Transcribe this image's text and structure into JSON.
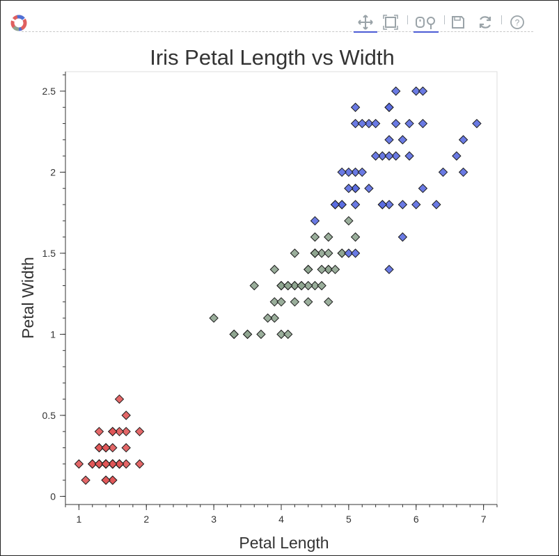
{
  "toolbar": {
    "tools": [
      {
        "name": "pan-tool",
        "icon": "pan-icon",
        "active": true
      },
      {
        "name": "box-zoom-tool",
        "icon": "box-zoom-icon",
        "active": false
      },
      {
        "name": "wheel-zoom-tool",
        "icon": "wheel-zoom-icon",
        "active": true
      },
      {
        "name": "save-tool",
        "icon": "save-icon",
        "active": false
      },
      {
        "name": "reset-tool",
        "icon": "reset-icon",
        "active": false
      },
      {
        "name": "help-tool",
        "icon": "help-icon",
        "active": false
      }
    ]
  },
  "chart_data": {
    "type": "scatter",
    "title": "Iris Petal Length vs Width",
    "xlabel": "Petal Length",
    "ylabel": "Petal Width",
    "xlim": [
      0.8,
      7.2
    ],
    "ylim": [
      -0.05,
      2.62
    ],
    "x_ticks": [
      1,
      2,
      3,
      4,
      5,
      6,
      7
    ],
    "y_ticks": [
      0,
      0.5,
      1,
      1.5,
      2,
      2.5
    ],
    "y_tick_labels": [
      "0",
      "0.5",
      "1",
      "1.5",
      "2",
      "2.5"
    ],
    "grid": false,
    "legend": "none",
    "marker": "diamond",
    "series": [
      {
        "color": "#e05658",
        "points": [
          [
            1.4,
            0.2
          ],
          [
            1.4,
            0.2
          ],
          [
            1.3,
            0.2
          ],
          [
            1.5,
            0.2
          ],
          [
            1.4,
            0.2
          ],
          [
            1.7,
            0.4
          ],
          [
            1.4,
            0.3
          ],
          [
            1.5,
            0.2
          ],
          [
            1.4,
            0.2
          ],
          [
            1.5,
            0.1
          ],
          [
            1.5,
            0.2
          ],
          [
            1.6,
            0.2
          ],
          [
            1.4,
            0.1
          ],
          [
            1.1,
            0.1
          ],
          [
            1.2,
            0.2
          ],
          [
            1.5,
            0.4
          ],
          [
            1.3,
            0.4
          ],
          [
            1.4,
            0.3
          ],
          [
            1.7,
            0.3
          ],
          [
            1.5,
            0.3
          ],
          [
            1.7,
            0.2
          ],
          [
            1.5,
            0.4
          ],
          [
            1.0,
            0.2
          ],
          [
            1.7,
            0.5
          ],
          [
            1.9,
            0.2
          ],
          [
            1.6,
            0.2
          ],
          [
            1.6,
            0.4
          ],
          [
            1.5,
            0.2
          ],
          [
            1.4,
            0.2
          ],
          [
            1.6,
            0.2
          ],
          [
            1.6,
            0.2
          ],
          [
            1.5,
            0.4
          ],
          [
            1.5,
            0.1
          ],
          [
            1.4,
            0.2
          ],
          [
            1.5,
            0.2
          ],
          [
            1.2,
            0.2
          ],
          [
            1.3,
            0.2
          ],
          [
            1.4,
            0.1
          ],
          [
            1.3,
            0.2
          ],
          [
            1.5,
            0.2
          ],
          [
            1.3,
            0.3
          ],
          [
            1.3,
            0.3
          ],
          [
            1.3,
            0.2
          ],
          [
            1.6,
            0.6
          ],
          [
            1.9,
            0.4
          ],
          [
            1.4,
            0.3
          ],
          [
            1.6,
            0.2
          ],
          [
            1.4,
            0.2
          ],
          [
            1.5,
            0.2
          ],
          [
            1.4,
            0.2
          ]
        ]
      },
      {
        "color": "#8fa590",
        "points": [
          [
            4.7,
            1.4
          ],
          [
            4.5,
            1.5
          ],
          [
            4.9,
            1.5
          ],
          [
            4.0,
            1.3
          ],
          [
            4.6,
            1.5
          ],
          [
            4.5,
            1.3
          ],
          [
            4.7,
            1.6
          ],
          [
            3.3,
            1.0
          ],
          [
            4.6,
            1.3
          ],
          [
            3.9,
            1.4
          ],
          [
            3.5,
            1.0
          ],
          [
            4.2,
            1.5
          ],
          [
            4.0,
            1.0
          ],
          [
            4.7,
            1.4
          ],
          [
            3.6,
            1.3
          ],
          [
            4.4,
            1.4
          ],
          [
            4.5,
            1.5
          ],
          [
            4.1,
            1.0
          ],
          [
            4.5,
            1.5
          ],
          [
            3.9,
            1.1
          ],
          [
            4.8,
            1.8
          ],
          [
            4.0,
            1.3
          ],
          [
            4.9,
            1.5
          ],
          [
            4.7,
            1.2
          ],
          [
            4.3,
            1.3
          ],
          [
            4.4,
            1.4
          ],
          [
            4.8,
            1.4
          ],
          [
            5.0,
            1.7
          ],
          [
            4.5,
            1.5
          ],
          [
            3.5,
            1.0
          ],
          [
            3.8,
            1.1
          ],
          [
            3.7,
            1.0
          ],
          [
            3.9,
            1.2
          ],
          [
            5.1,
            1.6
          ],
          [
            4.5,
            1.5
          ],
          [
            4.5,
            1.6
          ],
          [
            4.7,
            1.5
          ],
          [
            4.4,
            1.3
          ],
          [
            4.1,
            1.3
          ],
          [
            4.0,
            1.3
          ],
          [
            4.4,
            1.2
          ],
          [
            4.6,
            1.4
          ],
          [
            4.0,
            1.2
          ],
          [
            3.3,
            1.0
          ],
          [
            4.2,
            1.3
          ],
          [
            4.2,
            1.2
          ],
          [
            4.2,
            1.3
          ],
          [
            4.3,
            1.3
          ],
          [
            3.0,
            1.1
          ],
          [
            4.1,
            1.3
          ]
        ]
      },
      {
        "color": "#5a6ce0",
        "points": [
          [
            6.0,
            2.5
          ],
          [
            5.1,
            1.9
          ],
          [
            5.9,
            2.1
          ],
          [
            5.6,
            1.8
          ],
          [
            5.8,
            2.2
          ],
          [
            6.6,
            2.1
          ],
          [
            4.5,
            1.7
          ],
          [
            6.3,
            1.8
          ],
          [
            5.8,
            1.8
          ],
          [
            6.1,
            2.5
          ],
          [
            5.1,
            2.0
          ],
          [
            5.3,
            1.9
          ],
          [
            5.5,
            2.1
          ],
          [
            5.0,
            2.0
          ],
          [
            5.1,
            2.4
          ],
          [
            5.3,
            2.3
          ],
          [
            5.5,
            1.8
          ],
          [
            6.7,
            2.2
          ],
          [
            6.9,
            2.3
          ],
          [
            5.0,
            1.5
          ],
          [
            5.7,
            2.3
          ],
          [
            4.9,
            2.0
          ],
          [
            6.7,
            2.0
          ],
          [
            4.9,
            1.8
          ],
          [
            5.7,
            2.1
          ],
          [
            6.0,
            1.8
          ],
          [
            4.8,
            1.8
          ],
          [
            4.9,
            1.8
          ],
          [
            5.6,
            2.1
          ],
          [
            5.8,
            1.6
          ],
          [
            6.1,
            1.9
          ],
          [
            6.4,
            2.0
          ],
          [
            5.6,
            2.2
          ],
          [
            5.1,
            1.5
          ],
          [
            5.6,
            1.4
          ],
          [
            6.1,
            2.3
          ],
          [
            5.6,
            2.4
          ],
          [
            5.5,
            1.8
          ],
          [
            4.8,
            1.8
          ],
          [
            5.4,
            2.1
          ],
          [
            5.6,
            2.4
          ],
          [
            5.1,
            2.3
          ],
          [
            5.1,
            1.9
          ],
          [
            5.9,
            2.3
          ],
          [
            5.7,
            2.5
          ],
          [
            5.2,
            2.3
          ],
          [
            5.0,
            1.9
          ],
          [
            5.2,
            2.0
          ],
          [
            5.4,
            2.3
          ],
          [
            5.1,
            1.8
          ]
        ]
      }
    ]
  }
}
